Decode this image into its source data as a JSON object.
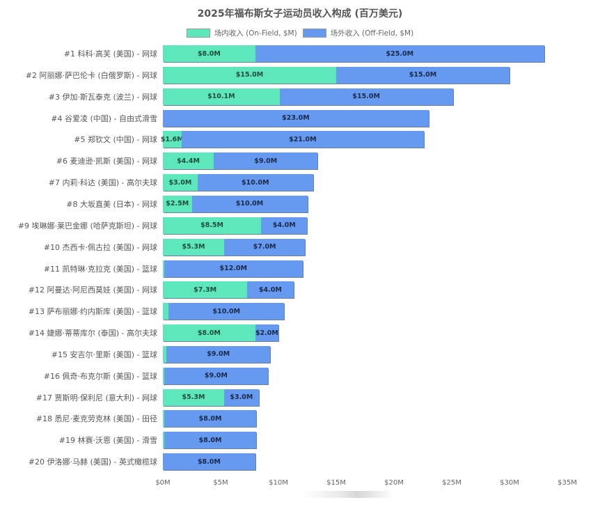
{
  "chart_data": {
    "type": "bar",
    "orientation": "horizontal",
    "stacked": true,
    "title": "2025年福布斯女子运动员收入构成 (百万美元)",
    "xlabel": "",
    "ylabel": "",
    "xlim": [
      0,
      35
    ],
    "x_ticks": [
      "$0M",
      "$5M",
      "$10M",
      "$15M",
      "$20M",
      "$25M",
      "$30M",
      "$35M"
    ],
    "legend_position": "top",
    "grid": false,
    "categories": [
      "#1 科科·高芙 (美国) - 网球",
      "#2 阿丽娜·萨巴伦卡 (白俄罗斯) - 网球",
      "#3 伊加·斯瓦泰克 (波兰) - 网球",
      "#4 谷爱凌 (中国) - 自由式滑雪",
      "#5 郑钦文 (中国) - 网球",
      "#6 麦迪逊·凯斯 (美国) - 网球",
      "#7 内莉·科达 (美国) - 高尔夫球",
      "#8 大坂直美 (日本) - 网球",
      "#9 埃琳娜·莱巴金娜 (哈萨克斯坦) - 网球",
      "#10 杰西卡·佩古拉 (美国) - 网球",
      "#11 凯特琳·克拉克 (美国) - 篮球",
      "#12 阿曼达·阿尼西莫娃 (美国) - 网球",
      "#13 萨布丽娜·约内斯库 (美国) - 篮球",
      "#14 婕娜·蒂蒂库尔 (泰国) - 高尔夫球",
      "#15 安吉尔·里斯 (美国) - 篮球",
      "#16 佩奇·布克尔斯 (美国) - 篮球",
      "#17 贾斯明·保利尼 (意大利) - 网球",
      "#18 悉尼·麦克劳克林 (美国) - 田径",
      "#19 林赛·沃恩 (美国) - 滑雪",
      "#20 伊洛娜·马赫 (美国) - 英式橄榄球"
    ],
    "series": [
      {
        "name": "场内收入 (On-Field, $M)",
        "color": "#5ee6bd",
        "values": [
          8.0,
          15.0,
          10.1,
          0.0,
          1.6,
          4.4,
          3.0,
          2.5,
          8.5,
          5.3,
          0.1,
          7.3,
          0.5,
          8.0,
          0.3,
          0.1,
          5.3,
          0.1,
          0.1,
          0.0
        ],
        "labels": [
          "$8.0M",
          "$15.0M",
          "$10.1M",
          "",
          "$1.6M",
          "$4.4M",
          "$3.0M",
          "$2.5M",
          "$8.5M",
          "$5.3M",
          "",
          "$7.3M",
          "",
          "$8.0M",
          "",
          "",
          "$5.3M",
          "",
          "",
          ""
        ]
      },
      {
        "name": "场外收入 (Off-Field, $M)",
        "color": "#6699f0",
        "values": [
          25.0,
          15.0,
          15.0,
          23.0,
          21.0,
          9.0,
          10.0,
          10.0,
          4.0,
          7.0,
          12.0,
          4.0,
          10.0,
          2.0,
          9.0,
          9.0,
          3.0,
          8.0,
          8.0,
          8.0
        ],
        "labels": [
          "$25.0M",
          "$15.0M",
          "$15.0M",
          "$23.0M",
          "$21.0M",
          "$9.0M",
          "$10.0M",
          "$10.0M",
          "$4.0M",
          "$7.0M",
          "$12.0M",
          "$4.0M",
          "$10.0M",
          "$2.0M",
          "$9.0M",
          "$9.0M",
          "$3.0M",
          "$8.0M",
          "$8.0M",
          "$8.0M"
        ]
      }
    ]
  }
}
